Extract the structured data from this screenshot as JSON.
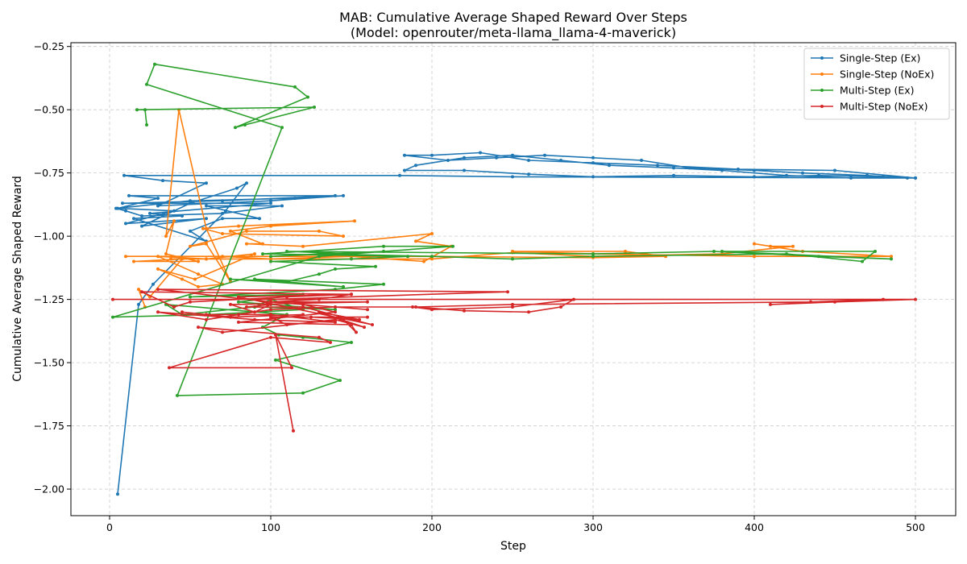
{
  "chart_data": {
    "type": "line",
    "title_line1": "MAB: Cumulative Average Shaped Reward Over Steps",
    "title_line2": "(Model: openrouter/meta-llama_llama-4-maverick)",
    "xlabel": "Step",
    "ylabel": "Cumulative Average Shaped Reward",
    "xlim": [
      -24,
      525
    ],
    "ylim": [
      -2.105,
      -0.235
    ],
    "x_ticks": [
      0,
      100,
      200,
      300,
      400,
      500
    ],
    "y_ticks": [
      -0.25,
      -0.5,
      -0.75,
      -1.0,
      -1.25,
      -1.5,
      -1.75,
      -2.0
    ],
    "x_tick_labels": [
      "0",
      "100",
      "200",
      "300",
      "400",
      "500"
    ],
    "y_tick_labels": [
      "−0.25",
      "−0.50",
      "−0.75",
      "−1.00",
      "−1.25",
      "−1.50",
      "−1.75",
      "−2.00"
    ],
    "grid": true,
    "legend_position": "top-right",
    "series": [
      {
        "name": "Single-Step (Ex)",
        "color": "#1f77b4",
        "points": [
          [
            5,
            -2.02
          ],
          [
            18,
            -1.27
          ],
          [
            27,
            -1.19
          ],
          [
            72,
            -0.9
          ],
          [
            85,
            -0.79
          ],
          [
            79,
            -0.81
          ],
          [
            50,
            -0.87
          ],
          [
            20,
            -0.96
          ],
          [
            60,
            -0.93
          ],
          [
            10,
            -0.95
          ],
          [
            40,
            -0.9
          ],
          [
            5,
            -0.89
          ],
          [
            30,
            -0.85
          ],
          [
            12,
            -0.84
          ],
          [
            140,
            -0.84
          ],
          [
            70,
            -0.86
          ],
          [
            8,
            -0.87
          ],
          [
            100,
            -0.87
          ],
          [
            25,
            -0.91
          ],
          [
            45,
            -0.92
          ],
          [
            15,
            -0.93
          ],
          [
            60,
            -1.02
          ],
          [
            50,
            -0.98
          ],
          [
            70,
            -0.93
          ],
          [
            93,
            -0.93
          ],
          [
            60,
            -0.88
          ],
          [
            107,
            -0.88
          ],
          [
            70,
            -0.91
          ],
          [
            20,
            -0.92
          ],
          [
            10,
            -0.9
          ],
          [
            4,
            -0.89
          ],
          [
            50,
            -0.86
          ],
          [
            115,
            -0.85
          ],
          [
            145,
            -0.84
          ],
          [
            100,
            -0.86
          ],
          [
            30,
            -0.88
          ],
          [
            60,
            -0.79
          ],
          [
            33,
            -0.78
          ],
          [
            9,
            -0.76
          ],
          [
            180,
            -0.76
          ],
          [
            250,
            -0.765
          ],
          [
            500,
            -0.77
          ],
          [
            450,
            -0.74
          ],
          [
            390,
            -0.735
          ],
          [
            340,
            -0.72
          ],
          [
            300,
            -0.71
          ],
          [
            260,
            -0.7
          ],
          [
            230,
            -0.67
          ],
          [
            200,
            -0.68
          ],
          [
            183,
            -0.68
          ],
          [
            210,
            -0.7
          ],
          [
            240,
            -0.69
          ],
          [
            270,
            -0.68
          ],
          [
            300,
            -0.69
          ],
          [
            330,
            -0.7
          ],
          [
            360,
            -0.73
          ],
          [
            400,
            -0.74
          ],
          [
            430,
            -0.75
          ],
          [
            470,
            -0.76
          ],
          [
            495,
            -0.77
          ],
          [
            460,
            -0.77
          ],
          [
            420,
            -0.76
          ],
          [
            380,
            -0.74
          ],
          [
            350,
            -0.73
          ],
          [
            310,
            -0.72
          ],
          [
            280,
            -0.7
          ],
          [
            250,
            -0.68
          ],
          [
            220,
            -0.69
          ],
          [
            190,
            -0.72
          ],
          [
            183,
            -0.74
          ],
          [
            220,
            -0.74
          ],
          [
            260,
            -0.755
          ],
          [
            300,
            -0.765
          ],
          [
            350,
            -0.76
          ],
          [
            400,
            -0.765
          ],
          [
            440,
            -0.76
          ],
          [
            480,
            -0.765
          ],
          [
            500,
            -0.77
          ]
        ]
      },
      {
        "name": "Single-Step (NoEx)",
        "color": "#ff7f0e",
        "points": [
          [
            22,
            -1.28
          ],
          [
            18,
            -1.21
          ],
          [
            25,
            -1.24
          ],
          [
            45,
            -1.09
          ],
          [
            15,
            -1.1
          ],
          [
            55,
            -1.1
          ],
          [
            35,
            -1.07
          ],
          [
            40,
            -0.94
          ],
          [
            35,
            -1.0
          ],
          [
            43,
            -0.5
          ],
          [
            60,
            -0.97
          ],
          [
            75,
            -1.18
          ],
          [
            60,
            -1.03
          ],
          [
            50,
            -1.04
          ],
          [
            85,
            -0.98
          ],
          [
            130,
            -0.98
          ],
          [
            145,
            -1.0
          ],
          [
            70,
            -0.99
          ],
          [
            58,
            -0.97
          ],
          [
            80,
            -0.96
          ],
          [
            152,
            -0.94
          ],
          [
            100,
            -0.96
          ],
          [
            75,
            -0.98
          ],
          [
            95,
            -1.03
          ],
          [
            85,
            -1.03
          ],
          [
            120,
            -1.04
          ],
          [
            200,
            -0.99
          ],
          [
            190,
            -1.02
          ],
          [
            212,
            -1.04
          ],
          [
            195,
            -1.1
          ],
          [
            150,
            -1.08
          ],
          [
            100,
            -1.09
          ],
          [
            70,
            -1.08
          ],
          [
            10,
            -1.08
          ],
          [
            200,
            -1.08
          ],
          [
            300,
            -1.085
          ],
          [
            345,
            -1.08
          ],
          [
            320,
            -1.06
          ],
          [
            250,
            -1.06
          ],
          [
            300,
            -1.07
          ],
          [
            400,
            -1.08
          ],
          [
            485,
            -1.08
          ],
          [
            430,
            -1.06
          ],
          [
            400,
            -1.03
          ],
          [
            410,
            -1.04
          ],
          [
            424,
            -1.04
          ],
          [
            380,
            -1.07
          ],
          [
            300,
            -1.08
          ],
          [
            250,
            -1.065
          ],
          [
            200,
            -1.09
          ],
          [
            100,
            -1.09
          ],
          [
            60,
            -1.09
          ],
          [
            30,
            -1.08
          ],
          [
            55,
            -1.15
          ],
          [
            70,
            -1.19
          ],
          [
            55,
            -1.2
          ],
          [
            45,
            -1.17
          ],
          [
            30,
            -1.13
          ],
          [
            53,
            -1.17
          ],
          [
            90,
            -1.07
          ],
          [
            60,
            -1.09
          ],
          [
            38,
            -1.09
          ]
        ]
      },
      {
        "name": "Multi-Step (Ex)",
        "color": "#2ca02c",
        "points": [
          [
            23,
            -0.56
          ],
          [
            22,
            -0.5
          ],
          [
            17,
            -0.5
          ],
          [
            127,
            -0.49
          ],
          [
            84,
            -0.56
          ],
          [
            78,
            -0.57
          ],
          [
            123,
            -0.45
          ],
          [
            115,
            -0.41
          ],
          [
            28,
            -0.32
          ],
          [
            23,
            -0.4
          ],
          [
            107,
            -0.57
          ],
          [
            42,
            -1.63
          ],
          [
            120,
            -1.62
          ],
          [
            143,
            -1.57
          ],
          [
            103,
            -1.49
          ],
          [
            150,
            -1.42
          ],
          [
            120,
            -1.4
          ],
          [
            105,
            -1.39
          ],
          [
            95,
            -1.36
          ],
          [
            110,
            -1.31
          ],
          [
            35,
            -1.27
          ],
          [
            45,
            -1.31
          ],
          [
            90,
            -1.28
          ],
          [
            140,
            -1.29
          ],
          [
            100,
            -1.27
          ],
          [
            80,
            -1.26
          ],
          [
            120,
            -1.23
          ],
          [
            50,
            -1.24
          ],
          [
            140,
            -1.21
          ],
          [
            170,
            -1.19
          ],
          [
            90,
            -1.17
          ],
          [
            145,
            -1.2
          ],
          [
            75,
            -1.17
          ],
          [
            110,
            -1.18
          ],
          [
            130,
            -1.15
          ],
          [
            140,
            -1.13
          ],
          [
            165,
            -1.12
          ],
          [
            100,
            -1.1
          ],
          [
            150,
            -1.09
          ],
          [
            185,
            -1.08
          ],
          [
            95,
            -1.07
          ],
          [
            170,
            -1.04
          ],
          [
            213,
            -1.04
          ],
          [
            150,
            -1.07
          ],
          [
            110,
            -1.06
          ],
          [
            300,
            -1.07
          ],
          [
            375,
            -1.06
          ],
          [
            440,
            -1.08
          ],
          [
            485,
            -1.09
          ],
          [
            380,
            -1.06
          ],
          [
            475,
            -1.06
          ],
          [
            467,
            -1.1
          ],
          [
            420,
            -1.07
          ],
          [
            300,
            -1.08
          ],
          [
            250,
            -1.09
          ],
          [
            200,
            -1.08
          ],
          [
            130,
            -1.07
          ],
          [
            100,
            -1.08
          ],
          [
            170,
            -1.06
          ],
          [
            130,
            -1.08
          ],
          [
            2,
            -1.32
          ],
          [
            62,
            -1.31
          ],
          [
            120,
            -1.29
          ],
          [
            100,
            -1.25
          ],
          [
            90,
            -1.28
          ]
        ]
      },
      {
        "name": "Multi-Step (NoEx)",
        "color": "#d62728",
        "points": [
          [
            114,
            -1.77
          ],
          [
            103,
            -1.39
          ],
          [
            113,
            -1.52
          ],
          [
            37,
            -1.52
          ],
          [
            100,
            -1.4
          ],
          [
            137,
            -1.42
          ],
          [
            130,
            -1.4
          ],
          [
            55,
            -1.36
          ],
          [
            70,
            -1.38
          ],
          [
            140,
            -1.33
          ],
          [
            158,
            -1.36
          ],
          [
            130,
            -1.3
          ],
          [
            155,
            -1.33
          ],
          [
            125,
            -1.32
          ],
          [
            160,
            -1.32
          ],
          [
            100,
            -1.32
          ],
          [
            110,
            -1.35
          ],
          [
            145,
            -1.33
          ],
          [
            153,
            -1.38
          ],
          [
            150,
            -1.35
          ],
          [
            80,
            -1.34
          ],
          [
            140,
            -1.3
          ],
          [
            120,
            -1.27
          ],
          [
            160,
            -1.29
          ],
          [
            100,
            -1.26
          ],
          [
            130,
            -1.25
          ],
          [
            150,
            -1.23
          ],
          [
            110,
            -1.24
          ],
          [
            50,
            -1.26
          ],
          [
            40,
            -1.28
          ],
          [
            20,
            -1.22
          ],
          [
            150,
            -1.23
          ],
          [
            80,
            -1.24
          ],
          [
            163,
            -1.35
          ],
          [
            120,
            -1.28
          ],
          [
            85,
            -1.28
          ],
          [
            100,
            -1.27
          ],
          [
            90,
            -1.3
          ],
          [
            75,
            -1.27
          ],
          [
            160,
            -1.26
          ],
          [
            100,
            -1.26
          ],
          [
            30,
            -1.21
          ],
          [
            247,
            -1.22
          ],
          [
            100,
            -1.25
          ],
          [
            2,
            -1.25
          ],
          [
            500,
            -1.25
          ],
          [
            450,
            -1.26
          ],
          [
            410,
            -1.27
          ],
          [
            480,
            -1.25
          ],
          [
            435,
            -1.26
          ],
          [
            250,
            -1.27
          ],
          [
            190,
            -1.28
          ],
          [
            220,
            -1.295
          ],
          [
            260,
            -1.3
          ],
          [
            280,
            -1.28
          ],
          [
            288,
            -1.25
          ],
          [
            250,
            -1.28
          ],
          [
            200,
            -1.29
          ],
          [
            188,
            -1.28
          ],
          [
            140,
            -1.28
          ],
          [
            100,
            -1.29
          ],
          [
            80,
            -1.31
          ],
          [
            60,
            -1.33
          ],
          [
            30,
            -1.3
          ],
          [
            90,
            -1.33
          ],
          [
            140,
            -1.34
          ],
          [
            100,
            -1.31
          ],
          [
            60,
            -1.31
          ],
          [
            45,
            -1.3
          ],
          [
            75,
            -1.32
          ],
          [
            120,
            -1.31
          ]
        ]
      }
    ]
  }
}
